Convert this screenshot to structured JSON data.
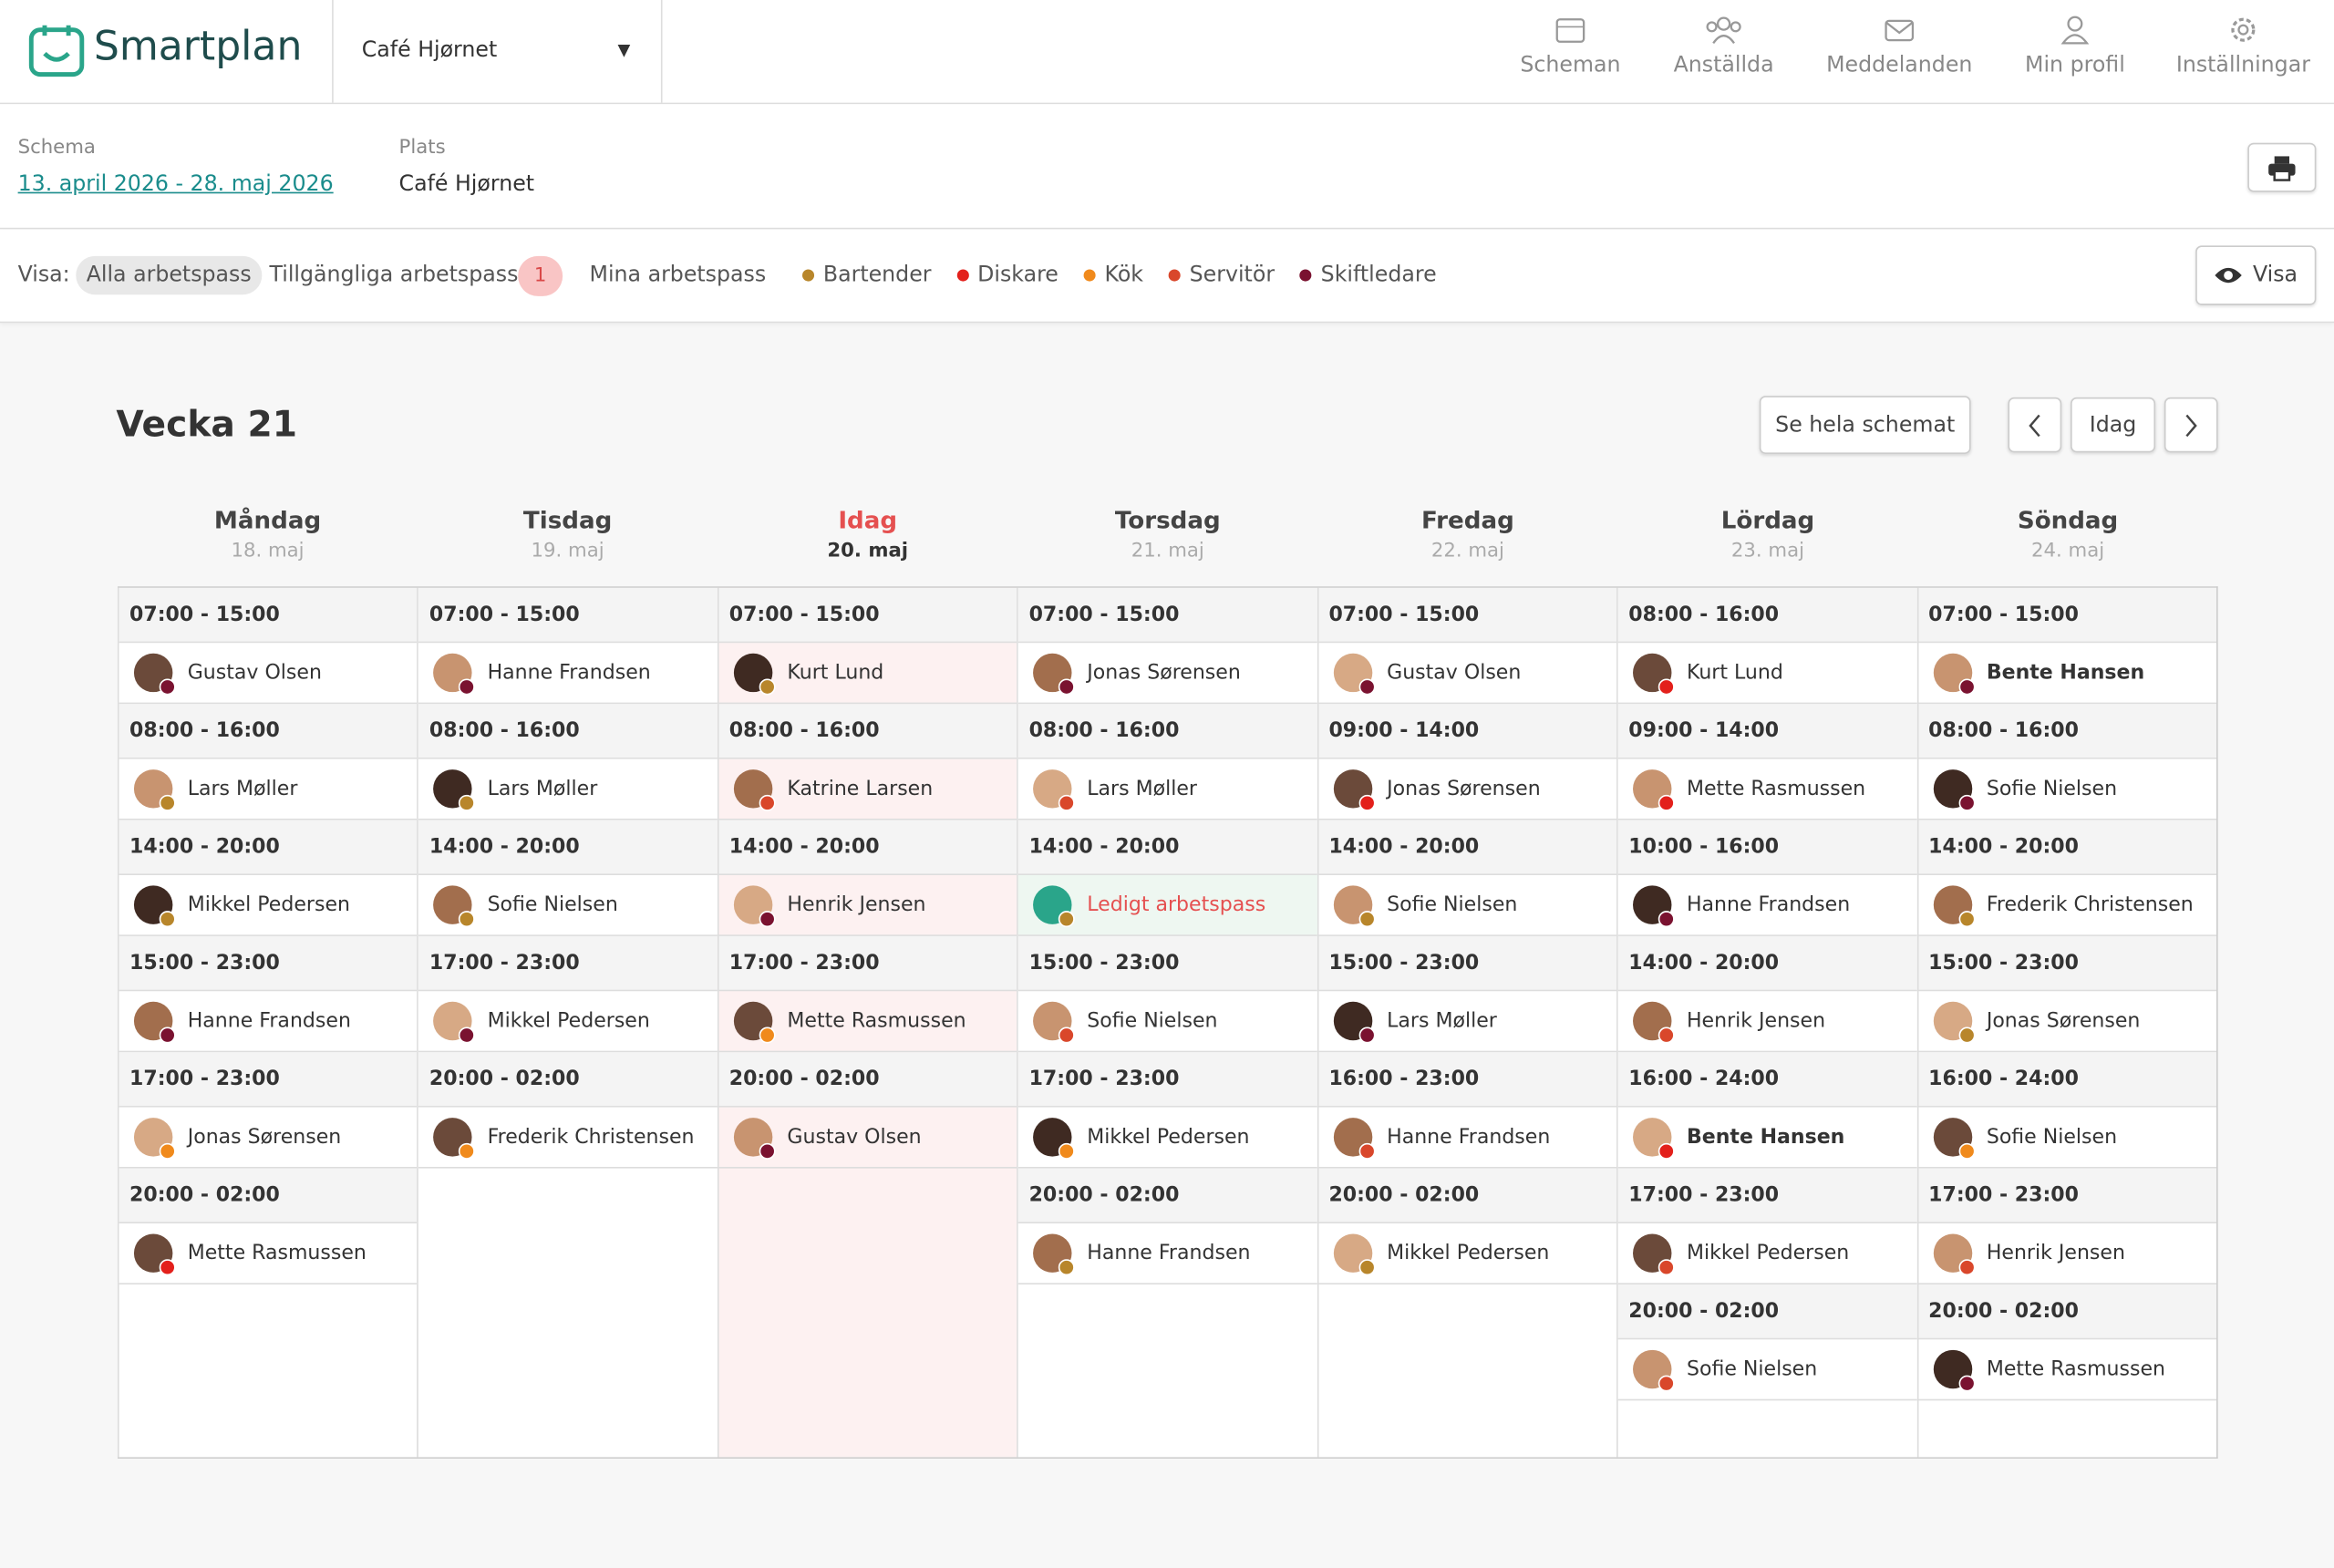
{
  "header": {
    "logo": "Smartplan",
    "location_select": "Café Hjørnet",
    "nav": [
      "Scheman",
      "Anställda",
      "Meddelanden",
      "Min profil",
      "Inställningar"
    ]
  },
  "info": {
    "schedule_label": "Schema",
    "schedule_range": "13. april 2026 - 28. maj 2026",
    "place_label": "Plats",
    "place": "Café Hjørnet"
  },
  "filters": {
    "label": "Visa:",
    "options": [
      "Alla arbetspass",
      "Tillgängliga arbetspass",
      "Mina arbetspass"
    ],
    "available_count": 1,
    "roles": [
      {
        "name": "Bartender",
        "color": "#b8862b"
      },
      {
        "name": "Diskare",
        "color": "#e3201b"
      },
      {
        "name": "Kök",
        "color": "#f08a1c"
      },
      {
        "name": "Servitör",
        "color": "#d9472b"
      },
      {
        "name": "Skiftledare",
        "color": "#7a1230"
      }
    ],
    "show_button": "Visa"
  },
  "week": {
    "title": "Vecka 21",
    "full_schedule_button": "Se hela schemat",
    "today_button": "Idag",
    "days": [
      {
        "name": "Måndag",
        "date": "18. maj",
        "shifts": [
          {
            "time": "07:00 - 15:00",
            "person": "Gustav Olsen",
            "color": "#7a1230"
          },
          {
            "time": "08:00 - 16:00",
            "person": "Lars Møller",
            "color": "#b8862b"
          },
          {
            "time": "14:00 - 20:00",
            "person": "Mikkel Pedersen",
            "color": "#b8862b"
          },
          {
            "time": "15:00 - 23:00",
            "person": "Hanne Frandsen",
            "color": "#7a1230"
          },
          {
            "time": "17:00 - 23:00",
            "person": "Jonas Sørensen",
            "color": "#f08a1c"
          },
          {
            "time": "20:00 - 02:00",
            "person": "Mette Rasmussen",
            "color": "#e3201b"
          }
        ]
      },
      {
        "name": "Tisdag",
        "date": "19. maj",
        "shifts": [
          {
            "time": "07:00 - 15:00",
            "person": "Hanne Frandsen",
            "color": "#7a1230"
          },
          {
            "time": "08:00 - 16:00",
            "person": "Lars Møller",
            "color": "#b8862b"
          },
          {
            "time": "14:00 - 20:00",
            "person": "Sofie Nielsen",
            "color": "#b8862b"
          },
          {
            "time": "17:00 - 23:00",
            "person": "Mikkel Pedersen",
            "color": "#7a1230"
          },
          {
            "time": "20:00 - 02:00",
            "person": "Frederik Christensen",
            "color": "#f08a1c"
          }
        ]
      },
      {
        "name": "Idag",
        "date": "20. maj",
        "today": true,
        "shifts": [
          {
            "time": "07:00 - 15:00",
            "person": "Kurt Lund",
            "color": "#b8862b"
          },
          {
            "time": "08:00 - 16:00",
            "person": "Katrine Larsen",
            "color": "#d9472b"
          },
          {
            "time": "14:00 - 20:00",
            "person": "Henrik Jensen",
            "color": "#7a1230"
          },
          {
            "time": "17:00 - 23:00",
            "person": "Mette Rasmussen",
            "color": "#f08a1c"
          },
          {
            "time": "20:00 - 02:00",
            "person": "Gustav Olsen",
            "color": "#7a1230"
          }
        ]
      },
      {
        "name": "Torsdag",
        "date": "21. maj",
        "shifts": [
          {
            "time": "07:00 - 15:00",
            "person": "Jonas Sørensen",
            "color": "#7a1230"
          },
          {
            "time": "08:00 - 16:00",
            "person": "Lars Møller",
            "color": "#d9472b"
          },
          {
            "time": "14:00 - 20:00",
            "person": "Ledigt arbetspass",
            "color": "#b8862b",
            "open": true
          },
          {
            "time": "15:00 - 23:00",
            "person": "Sofie Nielsen",
            "color": "#d9472b"
          },
          {
            "time": "17:00 - 23:00",
            "person": "Mikkel Pedersen",
            "color": "#f08a1c"
          },
          {
            "time": "20:00 - 02:00",
            "person": "Hanne Frandsen",
            "color": "#b8862b"
          }
        ]
      },
      {
        "name": "Fredag",
        "date": "22. maj",
        "shifts": [
          {
            "time": "07:00 - 15:00",
            "person": "Gustav Olsen",
            "color": "#7a1230"
          },
          {
            "time": "09:00 - 14:00",
            "person": "Jonas Sørensen",
            "color": "#e3201b"
          },
          {
            "time": "14:00 - 20:00",
            "person": "Sofie Nielsen",
            "color": "#b8862b"
          },
          {
            "time": "15:00 - 23:00",
            "person": "Lars Møller",
            "color": "#7a1230"
          },
          {
            "time": "16:00 - 23:00",
            "person": "Hanne Frandsen",
            "color": "#d9472b"
          },
          {
            "time": "20:00 - 02:00",
            "person": "Mikkel Pedersen",
            "color": "#b8862b"
          }
        ]
      },
      {
        "name": "Lördag",
        "date": "23. maj",
        "shifts": [
          {
            "time": "08:00 - 16:00",
            "person": "Kurt Lund",
            "color": "#e3201b"
          },
          {
            "time": "09:00 - 14:00",
            "person": "Mette Rasmussen",
            "color": "#e3201b"
          },
          {
            "time": "10:00 - 16:00",
            "person": "Hanne Frandsen",
            "color": "#7a1230"
          },
          {
            "time": "14:00 - 20:00",
            "person": "Henrik Jensen",
            "color": "#d9472b"
          },
          {
            "time": "16:00 - 24:00",
            "person": "Bente Hansen",
            "color": "#e3201b",
            "mine": true
          },
          {
            "time": "17:00 - 23:00",
            "person": "Mikkel Pedersen",
            "color": "#d9472b"
          },
          {
            "time": "20:00 - 02:00",
            "person": "Sofie Nielsen",
            "color": "#d9472b"
          }
        ]
      },
      {
        "name": "Söndag",
        "date": "24. maj",
        "shifts": [
          {
            "time": "07:00 - 15:00",
            "person": "Bente Hansen",
            "color": "#7a1230",
            "mine": true
          },
          {
            "time": "08:00 - 16:00",
            "person": "Sofie Nielsen",
            "color": "#7a1230"
          },
          {
            "time": "14:00 - 20:00",
            "person": "Frederik Christensen",
            "color": "#b8862b"
          },
          {
            "time": "15:00 - 23:00",
            "person": "Jonas Sørensen",
            "color": "#b8862b"
          },
          {
            "time": "16:00 - 24:00",
            "person": "Sofie Nielsen",
            "color": "#f08a1c"
          },
          {
            "time": "17:00 - 23:00",
            "person": "Henrik Jensen",
            "color": "#d9472b"
          },
          {
            "time": "20:00 - 02:00",
            "person": "Mette Rasmussen",
            "color": "#7a1230"
          }
        ]
      }
    ]
  }
}
